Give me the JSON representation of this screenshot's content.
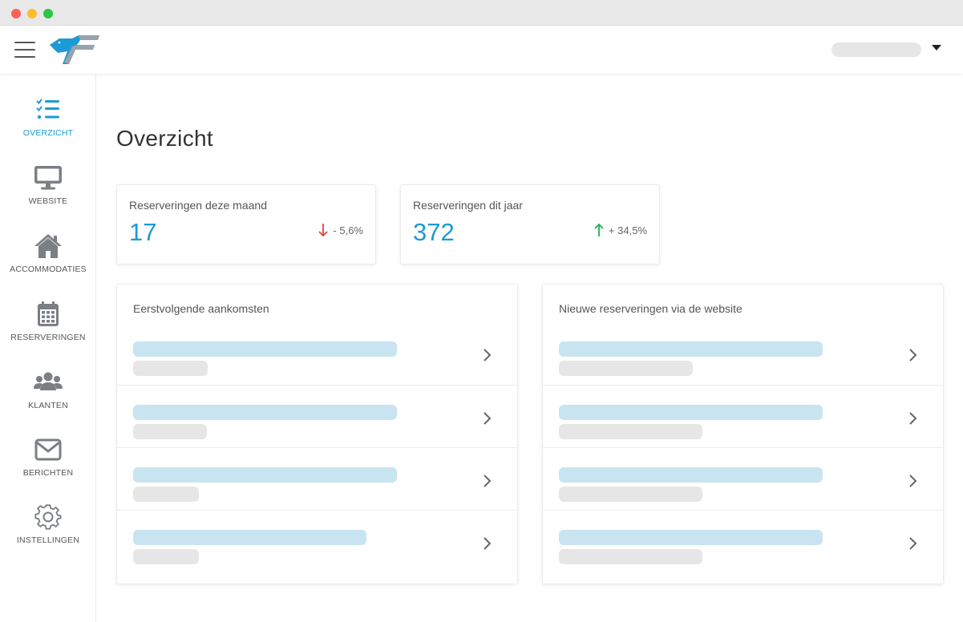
{
  "window": {
    "traffic_lights": [
      "close",
      "minimize",
      "maximize"
    ]
  },
  "header": {
    "logo_icon": "eagle-logo-icon",
    "menu_icon": "hamburger-icon",
    "user_menu_icon": "caret-down-icon"
  },
  "sidebar": {
    "items": [
      {
        "id": "overzicht",
        "label": "OVERZICHT",
        "icon": "checklist-icon",
        "active": true
      },
      {
        "id": "website",
        "label": "WEBSITE",
        "icon": "monitor-icon",
        "active": false
      },
      {
        "id": "accommodaties",
        "label": "ACCOMMODATIES",
        "icon": "home-icon",
        "active": false
      },
      {
        "id": "reserveringen",
        "label": "RESERVERINGEN",
        "icon": "calendar-icon",
        "active": false
      },
      {
        "id": "klanten",
        "label": "KLANTEN",
        "icon": "users-icon",
        "active": false
      },
      {
        "id": "berichten",
        "label": "BERICHTEN",
        "icon": "envelope-icon",
        "active": false
      },
      {
        "id": "instellingen",
        "label": "INSTELLINGEN",
        "icon": "gear-icon",
        "active": false
      }
    ]
  },
  "main": {
    "title": "Overzicht",
    "stats": [
      {
        "label": "Reserveringen deze maand",
        "value": "17",
        "trend": "- 5,6%",
        "direction": "down"
      },
      {
        "label": "Reserveringen dit jaar",
        "value": "372",
        "trend": "+ 34,5%",
        "direction": "up"
      }
    ],
    "lists": [
      {
        "title": "Eerstvolgende aankomsten",
        "rows": 4
      },
      {
        "title": "Nieuwe reserveringen via de website",
        "rows": 4
      }
    ]
  },
  "colors": {
    "accent": "#1c9ad6",
    "logo_blue": "#1c9ad6",
    "logo_gray": "#9aa3ab",
    "trend_down": "#e0443a",
    "trend_up": "#1fae5b",
    "placeholder_blue": "#c8e4f1",
    "placeholder_gray": "#e6e6e6",
    "icon_gray": "#7b7f84"
  }
}
